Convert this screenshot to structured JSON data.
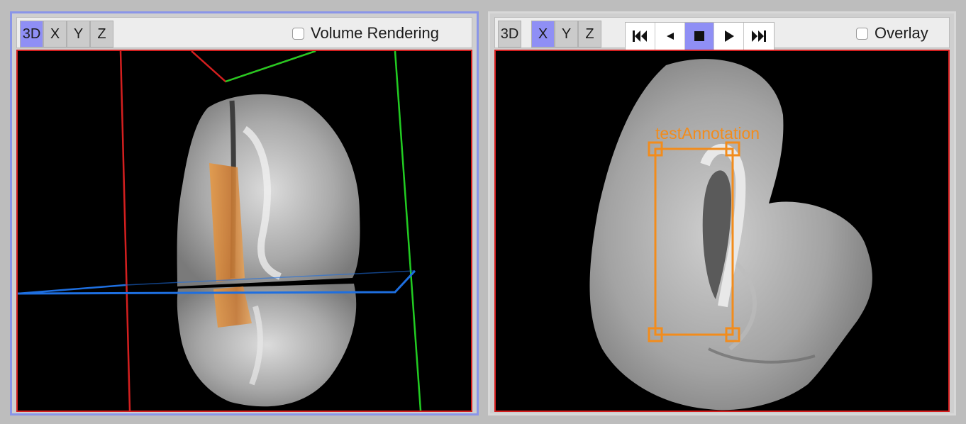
{
  "left_panel": {
    "view_buttons": [
      "3D",
      "X",
      "Y",
      "Z"
    ],
    "active_view": "3D",
    "checkbox_label": "Volume Rendering",
    "checkbox_checked": false
  },
  "right_panel": {
    "view_buttons": [
      "3D",
      "X",
      "Y",
      "Z"
    ],
    "active_view": "X",
    "playback_icons": [
      "skip-first-icon",
      "step-back-icon",
      "stop-icon",
      "play-icon",
      "skip-last-icon"
    ],
    "active_playback": "stop-icon",
    "checkbox_label": "Overlay",
    "checkbox_checked": false,
    "annotation": {
      "label": "testAnnotation",
      "color": "#f28c1c"
    }
  },
  "colors": {
    "active_button": "#8f8ff5",
    "frame_red": "#d41f1f",
    "axis_green": "#22cc22",
    "axis_blue": "#1e6fe0",
    "annotation_orange": "#f28c1c"
  }
}
